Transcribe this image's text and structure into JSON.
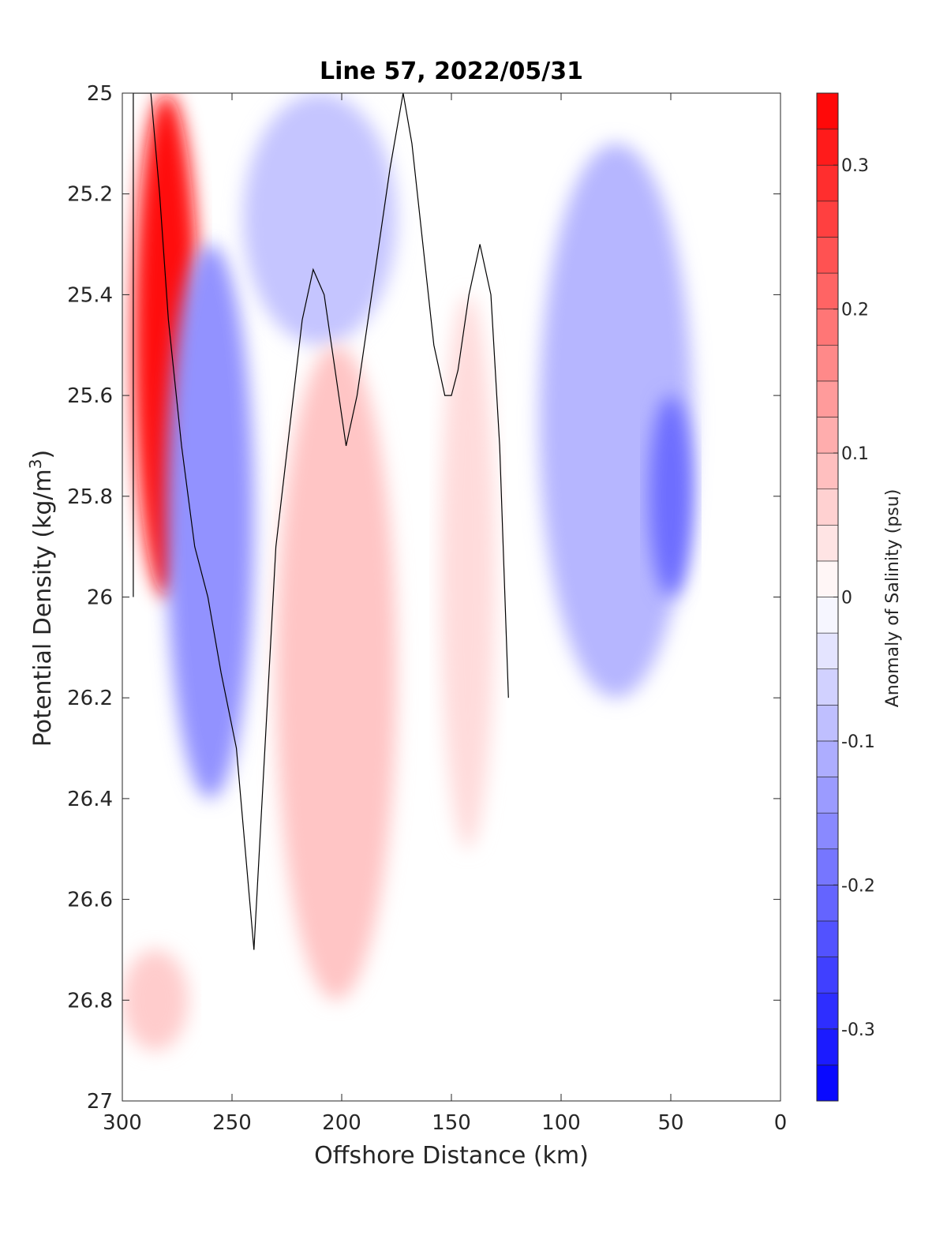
{
  "chart_data": {
    "type": "heatmap",
    "title": "Line 57, 2022/05/31",
    "xlabel": "Offshore Distance (km)",
    "ylabel_main": "Potential Density (kg/m",
    "ylabel_sup": "3",
    "ylabel_close": ")",
    "xlim": [
      300,
      0
    ],
    "x_reversed": true,
    "ylim": [
      25,
      27
    ],
    "y_reversed": true,
    "x_ticks": [
      300,
      250,
      200,
      150,
      100,
      50,
      0
    ],
    "x_tick_labels": [
      "300",
      "250",
      "200",
      "150",
      "100",
      "50",
      "0"
    ],
    "y_ticks": [
      25,
      25.2,
      25.4,
      25.6,
      25.8,
      26,
      26.2,
      26.4,
      26.6,
      26.8,
      27
    ],
    "y_tick_labels": [
      "25",
      "25.2",
      "25.4",
      "25.6",
      "25.8",
      "26",
      "26.2",
      "26.4",
      "26.6",
      "26.8",
      "27"
    ],
    "colorbar": {
      "label": "Anomaly of Salinity (psu)",
      "range": [
        -0.35,
        0.35
      ],
      "levels_step": 0.025,
      "ticks": [
        0.3,
        0.2,
        0.1,
        0,
        -0.1,
        -0.2,
        -0.3
      ],
      "tick_labels": [
        "0.3",
        "0.2",
        "0.1",
        "0",
        "-0.1",
        "-0.2",
        "-0.3"
      ],
      "color_max": "#ff0000",
      "color_mid": "#ffffff",
      "color_min": "#0000ff"
    },
    "grid": false,
    "anomaly_regions": [
      {
        "name": "nearshore-saline-core",
        "value": 0.33,
        "x_range": [
          295,
          265
        ],
        "y_range": [
          25.0,
          26.0
        ]
      },
      {
        "name": "fresh-tongue-west",
        "value": -0.15,
        "x_range": [
          280,
          240
        ],
        "y_range": [
          25.3,
          26.4
        ]
      },
      {
        "name": "fresh-upper-band",
        "value": -0.08,
        "x_range": [
          245,
          175
        ],
        "y_range": [
          25.0,
          25.5
        ]
      },
      {
        "name": "saline-ridge-200km",
        "value": 0.08,
        "x_range": [
          230,
          175
        ],
        "y_range": [
          25.5,
          26.8
        ]
      },
      {
        "name": "saline-ridge-145km",
        "value": 0.05,
        "x_range": [
          155,
          130
        ],
        "y_range": [
          25.4,
          26.5
        ]
      },
      {
        "name": "fresh-offshore-east",
        "value": -0.1,
        "x_range": [
          110,
          40
        ],
        "y_range": [
          25.1,
          26.2
        ]
      },
      {
        "name": "fresh-core-55km",
        "value": -0.2,
        "x_range": [
          60,
          40
        ],
        "y_range": [
          25.6,
          26.0
        ]
      },
      {
        "name": "saline-deep-west",
        "value": 0.07,
        "x_range": [
          300,
          270
        ],
        "y_range": [
          26.7,
          26.9
        ]
      }
    ],
    "zero_contour_lines": [
      {
        "x": [
          295,
          295,
          287,
          283,
          279,
          273,
          267,
          261,
          255,
          248,
          245,
          242,
          240
        ],
        "y": [
          26.0,
          25.0,
          25.0,
          25.2,
          25.45,
          25.7,
          25.9,
          26.0,
          26.15,
          26.3,
          26.45,
          26.6,
          26.7
        ]
      },
      {
        "x": [
          240,
          235,
          230,
          222,
          218,
          213,
          208,
          203,
          198,
          193,
          188,
          183,
          178,
          172,
          168,
          163,
          158,
          153,
          150,
          147,
          142,
          137,
          132,
          128,
          124
        ],
        "y": [
          26.7,
          26.3,
          25.9,
          25.6,
          25.45,
          25.35,
          25.4,
          25.55,
          25.7,
          25.6,
          25.45,
          25.3,
          25.15,
          25.0,
          25.1,
          25.3,
          25.5,
          25.6,
          25.6,
          25.55,
          25.4,
          25.3,
          25.4,
          25.7,
          26.2
        ]
      }
    ]
  }
}
